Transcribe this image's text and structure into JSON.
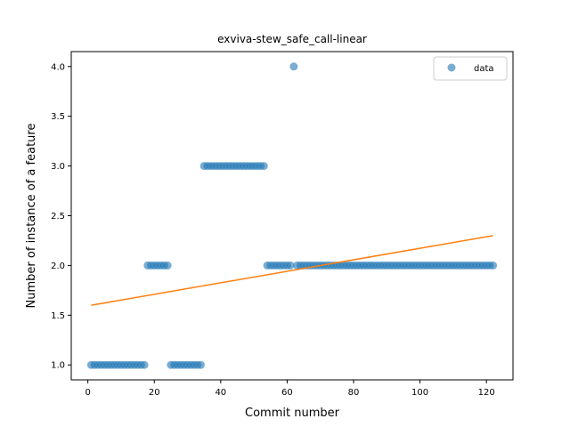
{
  "chart_data": {
    "type": "scatter",
    "title": "exviva-stew_safe_call-linear",
    "xlabel": "Commit number",
    "ylabel": "Number of instance of a feature",
    "xlim": [
      -5,
      128
    ],
    "ylim": [
      0.85,
      4.15
    ],
    "xticks": [
      0,
      20,
      40,
      60,
      80,
      100,
      120
    ],
    "yticks": [
      1.0,
      1.5,
      2.0,
      2.5,
      3.0,
      3.5,
      4.0
    ],
    "xtick_labels": [
      "0",
      "20",
      "40",
      "60",
      "80",
      "100",
      "120"
    ],
    "ytick_labels": [
      "1.0",
      "1.5",
      "2.0",
      "2.5",
      "3.0",
      "3.5",
      "4.0"
    ],
    "grid": false,
    "legend_position": "top-right",
    "series": [
      {
        "name": "data",
        "kind": "scatter",
        "color": "#1f77b4",
        "x": [
          1,
          2,
          3,
          4,
          5,
          6,
          7,
          8,
          9,
          10,
          11,
          12,
          13,
          14,
          15,
          16,
          17,
          18,
          19,
          20,
          21,
          22,
          23,
          24,
          25,
          26,
          27,
          28,
          29,
          30,
          31,
          32,
          33,
          34,
          35,
          36,
          37,
          38,
          39,
          40,
          41,
          42,
          43,
          44,
          45,
          46,
          47,
          48,
          49,
          50,
          51,
          52,
          53,
          54,
          55,
          56,
          57,
          58,
          59,
          60,
          61,
          62,
          63,
          64,
          65,
          66,
          67,
          68,
          69,
          70,
          71,
          72,
          73,
          74,
          75,
          76,
          77,
          78,
          79,
          80,
          81,
          82,
          83,
          84,
          85,
          86,
          87,
          88,
          89,
          90,
          91,
          92,
          93,
          94,
          95,
          96,
          97,
          98,
          99,
          100,
          101,
          102,
          103,
          104,
          105,
          106,
          107,
          108,
          109,
          110,
          111,
          112,
          113,
          114,
          115,
          116,
          117,
          118,
          119,
          120,
          121,
          122
        ],
        "y": [
          1,
          1,
          1,
          1,
          1,
          1,
          1,
          1,
          1,
          1,
          1,
          1,
          1,
          1,
          1,
          1,
          1,
          2,
          2,
          2,
          2,
          2,
          2,
          2,
          1,
          1,
          1,
          1,
          1,
          1,
          1,
          1,
          1,
          1,
          3,
          3,
          3,
          3,
          3,
          3,
          3,
          3,
          3,
          3,
          3,
          3,
          3,
          3,
          3,
          3,
          3,
          3,
          3,
          2,
          2,
          2,
          2,
          2,
          2,
          2,
          2,
          4,
          2,
          2,
          2,
          2,
          2,
          2,
          2,
          2,
          2,
          2,
          2,
          2,
          2,
          2,
          2,
          2,
          2,
          2,
          2,
          2,
          2,
          2,
          2,
          2,
          2,
          2,
          2,
          2,
          2,
          2,
          2,
          2,
          2,
          2,
          2,
          2,
          2,
          2,
          2,
          2,
          2,
          2,
          2,
          2,
          2,
          2,
          2,
          2,
          2,
          2,
          2,
          2,
          2,
          2,
          2,
          2,
          2,
          2,
          2,
          2
        ]
      },
      {
        "kind": "line",
        "color": "#ff7f0e",
        "x": [
          1,
          122
        ],
        "y": [
          1.6,
          2.3
        ]
      }
    ]
  }
}
